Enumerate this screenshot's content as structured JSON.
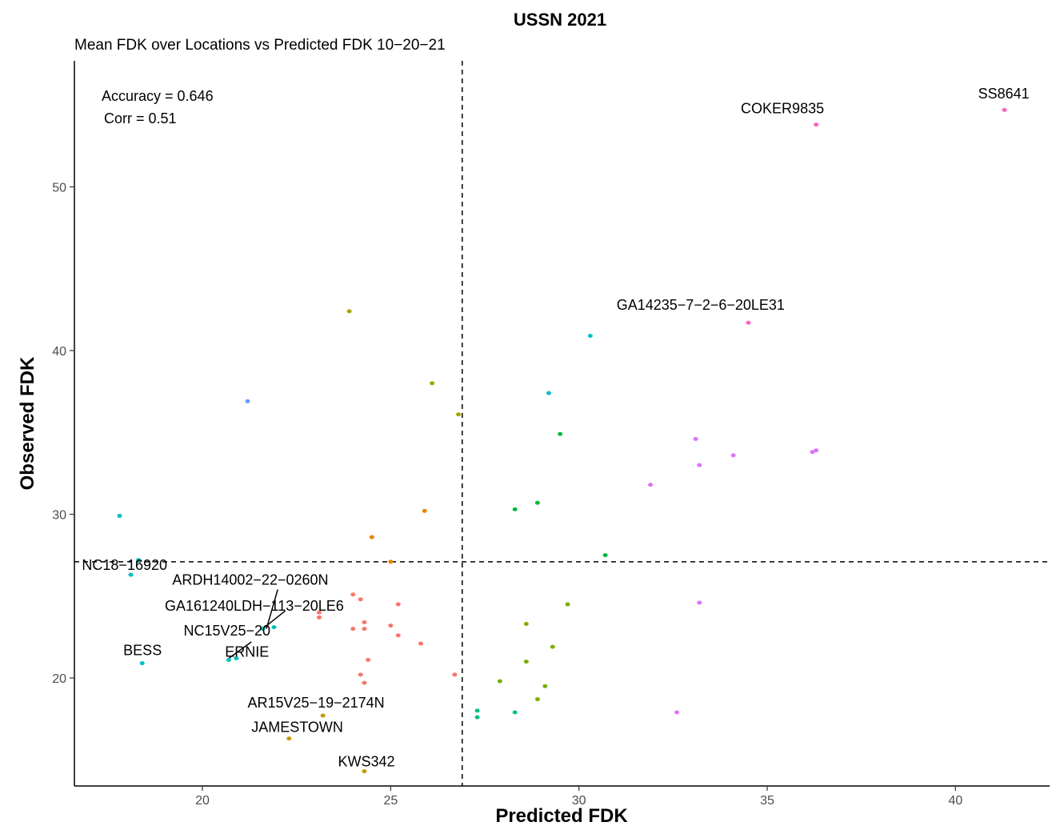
{
  "chart_data": {
    "type": "scatter",
    "title": "USSN 2021",
    "subtitle": "Mean FDK over Locations vs Predicted FDK 10−20−21",
    "xlabel": "Predicted FDK",
    "ylabel": "Observed FDK",
    "xlim": [
      16.6,
      42.5
    ],
    "ylim": [
      13.4,
      57.7
    ],
    "xticks": [
      20,
      25,
      30,
      35,
      40
    ],
    "yticks": [
      20,
      30,
      40,
      50
    ],
    "grid": false,
    "legend": "none",
    "vline": 26.9,
    "hline": 27.1,
    "annotations": [
      "Accuracy = 0.646",
      "Corr =  0.51"
    ],
    "points": [
      {
        "x": 41.3,
        "y": 54.7,
        "color": "#FF61C3"
      },
      {
        "x": 36.3,
        "y": 53.8,
        "color": "#FF61C3"
      },
      {
        "x": 34.5,
        "y": 41.7,
        "color": "#FF61C3"
      },
      {
        "x": 30.3,
        "y": 40.9,
        "color": "#00BFC4"
      },
      {
        "x": 23.9,
        "y": 42.4,
        "color": "#A3A500"
      },
      {
        "x": 26.1,
        "y": 38.0,
        "color": "#A3A500"
      },
      {
        "x": 26.8,
        "y": 36.1,
        "color": "#A3A500"
      },
      {
        "x": 21.2,
        "y": 36.9,
        "color": "#619CFF"
      },
      {
        "x": 29.2,
        "y": 37.4,
        "color": "#00BFC4"
      },
      {
        "x": 29.5,
        "y": 34.9,
        "color": "#00BA38"
      },
      {
        "x": 33.1,
        "y": 34.6,
        "color": "#DB72FB"
      },
      {
        "x": 34.1,
        "y": 33.6,
        "color": "#DB72FB"
      },
      {
        "x": 36.2,
        "y": 33.8,
        "color": "#DB72FB"
      },
      {
        "x": 36.3,
        "y": 33.9,
        "color": "#DB72FB"
      },
      {
        "x": 33.2,
        "y": 33.0,
        "color": "#DB72FB"
      },
      {
        "x": 31.9,
        "y": 31.8,
        "color": "#DB72FB"
      },
      {
        "x": 28.9,
        "y": 30.7,
        "color": "#00BA38"
      },
      {
        "x": 28.3,
        "y": 30.3,
        "color": "#00BA38"
      },
      {
        "x": 25.9,
        "y": 30.2,
        "color": "#E58700"
      },
      {
        "x": 24.5,
        "y": 28.6,
        "color": "#E58700"
      },
      {
        "x": 25.0,
        "y": 27.1,
        "color": "#E58700"
      },
      {
        "x": 30.7,
        "y": 27.5,
        "color": "#00BA38"
      },
      {
        "x": 17.8,
        "y": 29.9,
        "color": "#00BFC4"
      },
      {
        "x": 18.3,
        "y": 27.2,
        "color": "#00BFC4"
      },
      {
        "x": 18.1,
        "y": 26.3,
        "color": "#00BFC4"
      },
      {
        "x": 33.2,
        "y": 24.6,
        "color": "#DB72FB"
      },
      {
        "x": 24.0,
        "y": 25.1,
        "color": "#F8766D"
      },
      {
        "x": 24.2,
        "y": 24.8,
        "color": "#F8766D"
      },
      {
        "x": 25.2,
        "y": 24.5,
        "color": "#F8766D"
      },
      {
        "x": 23.1,
        "y": 24.0,
        "color": "#F8766D"
      },
      {
        "x": 23.1,
        "y": 23.7,
        "color": "#F8766D"
      },
      {
        "x": 24.3,
        "y": 23.4,
        "color": "#F8766D"
      },
      {
        "x": 25.0,
        "y": 23.2,
        "color": "#F8766D"
      },
      {
        "x": 24.0,
        "y": 23.0,
        "color": "#F8766D"
      },
      {
        "x": 24.3,
        "y": 23.0,
        "color": "#F8766D"
      },
      {
        "x": 25.2,
        "y": 22.6,
        "color": "#F8766D"
      },
      {
        "x": 25.8,
        "y": 22.1,
        "color": "#F8766D"
      },
      {
        "x": 24.4,
        "y": 21.1,
        "color": "#F8766D"
      },
      {
        "x": 24.2,
        "y": 20.2,
        "color": "#F8766D"
      },
      {
        "x": 24.3,
        "y": 19.7,
        "color": "#F8766D"
      },
      {
        "x": 26.7,
        "y": 20.2,
        "color": "#F8766D"
      },
      {
        "x": 29.7,
        "y": 24.5,
        "color": "#7CAE00"
      },
      {
        "x": 28.6,
        "y": 23.3,
        "color": "#7CAE00"
      },
      {
        "x": 29.3,
        "y": 21.9,
        "color": "#7CAE00"
      },
      {
        "x": 28.6,
        "y": 21.0,
        "color": "#7CAE00"
      },
      {
        "x": 27.9,
        "y": 19.8,
        "color": "#7CAE00"
      },
      {
        "x": 29.1,
        "y": 19.5,
        "color": "#7CAE00"
      },
      {
        "x": 28.9,
        "y": 18.7,
        "color": "#7CAE00"
      },
      {
        "x": 27.3,
        "y": 18.0,
        "color": "#00C08B"
      },
      {
        "x": 27.3,
        "y": 17.6,
        "color": "#00C08B"
      },
      {
        "x": 28.3,
        "y": 17.9,
        "color": "#00C08B"
      },
      {
        "x": 32.6,
        "y": 17.9,
        "color": "#DB72FB"
      },
      {
        "x": 21.6,
        "y": 23.0,
        "color": "#00BFC4"
      },
      {
        "x": 21.9,
        "y": 23.1,
        "color": "#00BFC4"
      },
      {
        "x": 20.7,
        "y": 21.1,
        "color": "#00BFC4"
      },
      {
        "x": 20.9,
        "y": 21.2,
        "color": "#00BFC4"
      },
      {
        "x": 18.4,
        "y": 20.9,
        "color": "#00BFC4"
      },
      {
        "x": 23.2,
        "y": 17.7,
        "color": "#C99800"
      },
      {
        "x": 22.3,
        "y": 16.3,
        "color": "#C99800"
      },
      {
        "x": 24.3,
        "y": 14.3,
        "color": "#C99800"
      }
    ],
    "labels": [
      {
        "text": "SS8641",
        "x": 40.6,
        "y": 55.4,
        "anchor": "start"
      },
      {
        "text": "COKER9835",
        "x": 34.3,
        "y": 54.5,
        "anchor": "start"
      },
      {
        "text": "GA14235−7−2−6−20LE31",
        "x": 31.0,
        "y": 42.5,
        "anchor": "start"
      },
      {
        "text": "NC18−16920",
        "x": 16.8,
        "y": 26.6,
        "anchor": "start"
      },
      {
        "text": "ARDH14002−22−0260N",
        "x": 19.2,
        "y": 25.7,
        "anchor": "start"
      },
      {
        "text": "GA161240LDH−113−20LE6",
        "x": 19.0,
        "y": 24.1,
        "anchor": "start"
      },
      {
        "text": "NC15V25−20",
        "x": 19.5,
        "y": 22.6,
        "anchor": "start"
      },
      {
        "text": "BESS",
        "x": 17.9,
        "y": 21.4,
        "anchor": "start"
      },
      {
        "text": "ERNIE",
        "x": 20.6,
        "y": 21.3,
        "anchor": "start"
      },
      {
        "text": "AR15V25−19−2174N",
        "x": 21.2,
        "y": 18.2,
        "anchor": "start"
      },
      {
        "text": "JAMESTOWN",
        "x": 21.3,
        "y": 16.7,
        "anchor": "start"
      },
      {
        "text": "KWS342",
        "x": 23.6,
        "y": 14.6,
        "anchor": "start"
      }
    ],
    "leaders": [
      {
        "x1": 20.7,
        "y1": 21.2,
        "x2": 21.3,
        "y2": 22.2
      },
      {
        "x1": 21.6,
        "y1": 23.0,
        "x2": 22.2,
        "y2": 24.1
      },
      {
        "x1": 21.7,
        "y1": 23.0,
        "x2": 22.0,
        "y2": 25.4
      }
    ]
  }
}
